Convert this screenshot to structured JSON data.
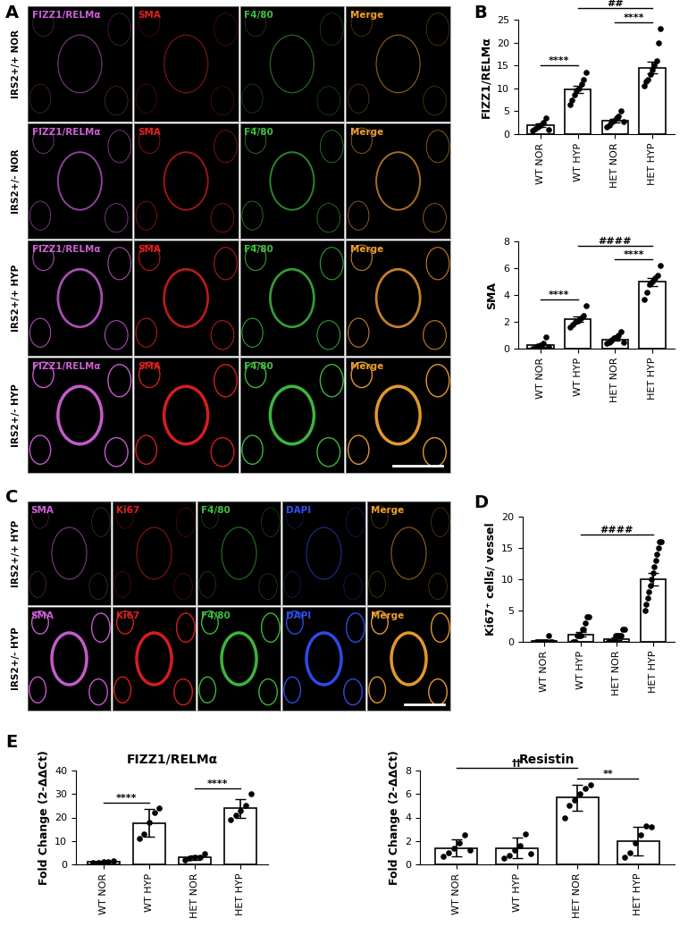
{
  "image_panels": [
    {
      "panel": "A",
      "rows": [
        "IRS2+/+ NOR",
        "IRS2+/- NOR",
        "IRS2+/+ HYP",
        "IRS2+/- HYP"
      ],
      "columns": [
        {
          "name": "FIZZ1/RELMα",
          "color": "#d060d8"
        },
        {
          "name": "SMA",
          "color": "#e02020"
        },
        {
          "name": "F4/80",
          "color": "#40c040"
        },
        {
          "name": "Merge",
          "color": "#f0a030"
        }
      ]
    },
    {
      "panel": "C",
      "rows": [
        "IRS2+/+ HYP",
        "IRS2+/- HYP"
      ],
      "columns": [
        {
          "name": "SMA",
          "color": "#d060d8"
        },
        {
          "name": "Ki67",
          "color": "#e02020"
        },
        {
          "name": "F4/80",
          "color": "#40c040"
        },
        {
          "name": "DAPI",
          "color": "#3050f0"
        },
        {
          "name": "Merge",
          "color": "#f0a030"
        }
      ]
    }
  ],
  "chart_data": [
    {
      "panel": "B",
      "type": "bar",
      "ylabel": "FIZZ1/RELMα",
      "categories": [
        "WT NOR",
        "WT HYP",
        "HET NOR",
        "HET HYP"
      ],
      "values": [
        2.0,
        9.7,
        3.0,
        14.5
      ],
      "errors": [
        0.4,
        0.8,
        0.4,
        1.3
      ],
      "points": [
        [
          0.8,
          1.2,
          1.5,
          2.0,
          2.5,
          3.5,
          1.0
        ],
        [
          6.5,
          7.5,
          8.5,
          9.5,
          10.0,
          11.0,
          12.0,
          13.5
        ],
        [
          1.5,
          2.0,
          2.5,
          3.0,
          3.5,
          4.0,
          5.0,
          2.8
        ],
        [
          10.5,
          11.5,
          12.0,
          13.0,
          14.0,
          15.0,
          16.0,
          20.0,
          23.0
        ]
      ],
      "color": "#000000",
      "ylim": [
        0,
        25
      ],
      "yticks": [
        0,
        5,
        10,
        15,
        20,
        25
      ],
      "annotations": [
        {
          "text": "****",
          "between": [
            "WT NOR",
            "WT HYP"
          ]
        },
        {
          "text": "****",
          "between": [
            "HET NOR",
            "HET HYP"
          ]
        },
        {
          "text": "##",
          "between": [
            "WT HYP",
            "HET HYP"
          ]
        }
      ]
    },
    {
      "type": "bar",
      "ylabel": "SMA",
      "categories": [
        "WT NOR",
        "WT HYP",
        "HET NOR",
        "HET HYP"
      ],
      "values": [
        0.25,
        2.2,
        0.7,
        5.0
      ],
      "errors": [
        0.1,
        0.2,
        0.1,
        0.3
      ],
      "points": [
        [
          0.0,
          0.1,
          0.2,
          0.3,
          0.4,
          0.9,
          0.15
        ],
        [
          1.6,
          1.8,
          2.0,
          2.1,
          2.3,
          2.5,
          3.2
        ],
        [
          0.4,
          0.5,
          0.6,
          0.8,
          0.9,
          1.0,
          1.3,
          0.5
        ],
        [
          3.7,
          4.2,
          4.8,
          5.0,
          5.3,
          5.5,
          6.2
        ]
      ],
      "color": "#000000",
      "ylim": [
        0,
        8
      ],
      "yticks": [
        0,
        2,
        4,
        6,
        8
      ],
      "annotations": [
        {
          "text": "****",
          "between": [
            "WT NOR",
            "WT HYP"
          ]
        },
        {
          "text": "****",
          "between": [
            "HET NOR",
            "HET HYP"
          ]
        },
        {
          "text": "####",
          "between": [
            "WT HYP",
            "HET HYP"
          ]
        }
      ]
    },
    {
      "panel": "D",
      "type": "bar",
      "ylabel": "Ki67⁺ cells/ vessel",
      "categories": [
        "WT NOR",
        "WT HYP",
        "HET NOR",
        "HET HYP"
      ],
      "values": [
        0.1,
        1.2,
        0.5,
        10.0
      ],
      "errors": [
        0.1,
        0.4,
        0.2,
        1.0
      ],
      "points": [
        [
          0,
          0,
          0,
          0,
          0,
          0,
          0,
          1,
          0,
          0
        ],
        [
          0,
          0,
          0,
          1,
          1,
          1,
          2,
          2,
          3,
          4,
          4
        ],
        [
          0,
          0,
          0,
          0,
          1,
          1,
          1,
          1,
          2,
          2
        ],
        [
          5,
          6,
          7,
          8,
          9,
          10,
          11,
          12,
          13,
          14,
          15,
          16,
          16
        ]
      ],
      "color": "#000000",
      "ylim": [
        0,
        20
      ],
      "yticks": [
        0,
        5,
        10,
        15,
        20
      ],
      "annotations": [
        {
          "text": "####",
          "between": [
            "WT HYP",
            "HET HYP"
          ]
        }
      ]
    },
    {
      "panel": "E",
      "type": "bar",
      "title": "FIZZ1/RELMα",
      "ylabel": "Fold Change (2-ΔΔCt)",
      "categories": [
        "WT NOR",
        "WT HYP",
        "HET NOR",
        "HET HYP"
      ],
      "values": [
        1.1,
        17.7,
        2.9,
        24.0
      ],
      "errors": [
        0.3,
        6.0,
        1.0,
        4.0
      ],
      "points": [
        [
          0.7,
          0.9,
          1.0,
          1.2,
          1.5
        ],
        [
          11.0,
          13.0,
          18.0,
          22.0,
          24.0
        ],
        [
          2.0,
          2.5,
          3.0,
          3.2,
          4.5
        ],
        [
          19.0,
          21.0,
          23.0,
          25.0,
          30.0
        ]
      ],
      "color": "#000000",
      "ylim": [
        0,
        40
      ],
      "yticks": [
        0,
        10,
        20,
        30,
        40
      ],
      "annotations": [
        {
          "text": "****",
          "between": [
            "WT NOR",
            "WT HYP"
          ]
        },
        {
          "text": "****",
          "between": [
            "HET NOR",
            "HET HYP"
          ]
        }
      ]
    },
    {
      "type": "bar",
      "title": "Resistin",
      "ylabel": "Fold Change (2-ΔΔCt)",
      "categories": [
        "WT NOR",
        "WT HYP",
        "HET NOR",
        "HET HYP"
      ],
      "values": [
        1.4,
        1.4,
        5.7,
        2.0
      ],
      "errors": [
        0.7,
        0.9,
        1.1,
        1.2
      ],
      "points": [
        [
          0.7,
          1.0,
          1.4,
          1.8,
          2.5,
          1.2
        ],
        [
          0.5,
          0.8,
          1.2,
          1.6,
          2.6,
          0.9
        ],
        [
          4.0,
          5.0,
          5.5,
          6.0,
          6.5,
          6.8
        ],
        [
          0.6,
          1.0,
          1.8,
          2.5,
          3.3,
          3.2
        ]
      ],
      "color": "#000000",
      "ylim": [
        0,
        8
      ],
      "yticks": [
        0,
        2,
        4,
        6,
        8
      ],
      "annotations": [
        {
          "text": "**",
          "between": [
            "HET NOR",
            "HET HYP"
          ]
        },
        {
          "text": "††",
          "between": [
            "WT NOR",
            "HET NOR"
          ]
        }
      ]
    }
  ]
}
